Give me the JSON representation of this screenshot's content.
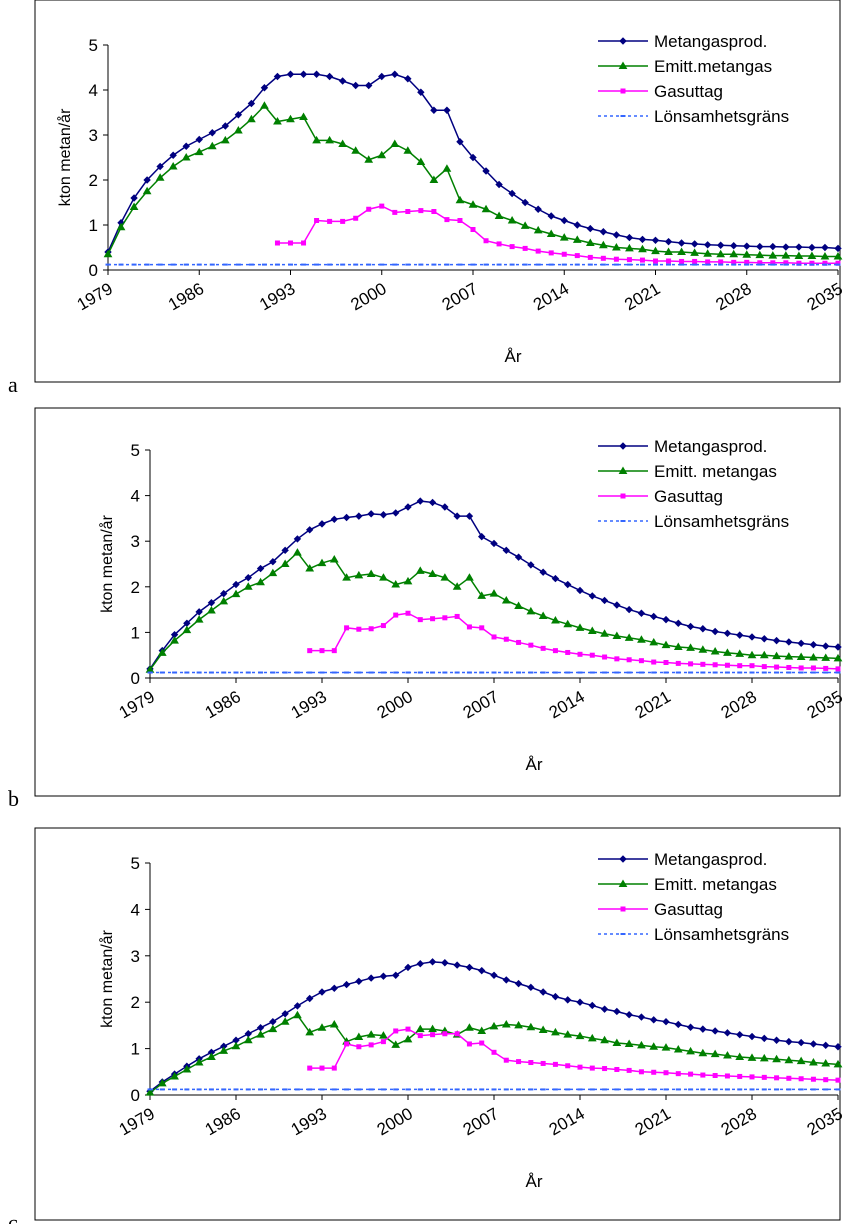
{
  "chart_data": [
    {
      "type": "line",
      "panel_label": "a",
      "x_label": "År",
      "y_label": "kton metan/år",
      "legend": "upper right",
      "x": [
        1979,
        1980,
        1981,
        1982,
        1983,
        1984,
        1985,
        1986,
        1987,
        1988,
        1989,
        1990,
        1991,
        1992,
        1993,
        1994,
        1995,
        1996,
        1997,
        1998,
        1999,
        2000,
        2001,
        2002,
        2003,
        2004,
        2005,
        2006,
        2007,
        2008,
        2009,
        2010,
        2011,
        2012,
        2013,
        2014,
        2015,
        2016,
        2017,
        2018,
        2019,
        2020,
        2021,
        2022,
        2023,
        2024,
        2025,
        2026,
        2027,
        2028,
        2029,
        2030,
        2031,
        2032,
        2033,
        2034,
        2035
      ],
      "xlim": [
        1979,
        2035
      ],
      "xticks": [
        1979,
        1986,
        1993,
        2000,
        2007,
        2014,
        2021,
        2028,
        2035
      ],
      "ylim": [
        0,
        5
      ],
      "yticks": [
        0,
        1,
        2,
        3,
        4,
        5
      ],
      "series": [
        {
          "name": "Metangasprod.",
          "color": "#000080",
          "marker": "diamond",
          "values": [
            0.4,
            1.05,
            1.6,
            2.0,
            2.3,
            2.55,
            2.75,
            2.9,
            3.05,
            3.2,
            3.45,
            3.7,
            4.05,
            4.3,
            4.35,
            4.35,
            4.35,
            4.3,
            4.2,
            4.1,
            4.1,
            4.3,
            4.35,
            4.25,
            3.95,
            3.55,
            3.55,
            2.85,
            2.5,
            2.2,
            1.9,
            1.7,
            1.5,
            1.35,
            1.2,
            1.1,
            1.0,
            0.92,
            0.85,
            0.78,
            0.72,
            0.68,
            0.66,
            0.63,
            0.6,
            0.58,
            0.56,
            0.55,
            0.54,
            0.53,
            0.52,
            0.52,
            0.51,
            0.51,
            0.5,
            0.5,
            0.48
          ]
        },
        {
          "name": "Emitt.metangas",
          "color": "#008000",
          "marker": "triangle",
          "values": [
            0.35,
            0.95,
            1.4,
            1.75,
            2.05,
            2.3,
            2.5,
            2.62,
            2.75,
            2.88,
            3.1,
            3.35,
            3.65,
            3.3,
            3.35,
            3.4,
            2.88,
            2.88,
            2.8,
            2.65,
            2.45,
            2.55,
            2.8,
            2.65,
            2.4,
            2.0,
            2.25,
            1.55,
            1.45,
            1.35,
            1.2,
            1.1,
            0.98,
            0.88,
            0.8,
            0.72,
            0.67,
            0.6,
            0.55,
            0.5,
            0.48,
            0.46,
            0.42,
            0.4,
            0.4,
            0.38,
            0.36,
            0.35,
            0.35,
            0.34,
            0.33,
            0.32,
            0.32,
            0.31,
            0.31,
            0.3,
            0.3
          ]
        },
        {
          "name": "Gasuttag",
          "color": "#ff00ff",
          "marker": "square",
          "values": [
            null,
            null,
            null,
            null,
            null,
            null,
            null,
            null,
            null,
            null,
            null,
            null,
            null,
            0.6,
            0.6,
            0.6,
            1.1,
            1.08,
            1.08,
            1.15,
            1.35,
            1.42,
            1.28,
            1.3,
            1.32,
            1.3,
            1.12,
            1.1,
            0.9,
            0.65,
            0.58,
            0.52,
            0.48,
            0.42,
            0.38,
            0.35,
            0.32,
            0.28,
            0.26,
            0.24,
            0.23,
            0.22,
            0.2,
            0.2,
            0.19,
            0.19,
            0.18,
            0.18,
            0.17,
            0.17,
            0.16,
            0.16,
            0.16,
            0.15,
            0.15,
            0.15,
            0.15
          ]
        },
        {
          "name": "Lönsamhetsgräns",
          "color": "#3366ff",
          "marker": "dash",
          "values": [
            0.12,
            0.12,
            0.12,
            0.12,
            0.12,
            0.12,
            0.12,
            0.12,
            0.12,
            0.12,
            0.12,
            0.12,
            0.12,
            0.12,
            0.12,
            0.12,
            0.12,
            0.12,
            0.12,
            0.12,
            0.12,
            0.12,
            0.12,
            0.12,
            0.12,
            0.12,
            0.12,
            0.12,
            0.12,
            0.12,
            0.12,
            0.12,
            0.12,
            0.12,
            0.12,
            0.12,
            0.12,
            0.12,
            0.12,
            0.12,
            0.12,
            0.12,
            0.12,
            0.12,
            0.12,
            0.12,
            0.12,
            0.12,
            0.12,
            0.12,
            0.12,
            0.12,
            0.12,
            0.12,
            0.12,
            0.12,
            0.12
          ]
        }
      ]
    },
    {
      "type": "line",
      "panel_label": "b",
      "x_label": "År",
      "y_label": "kton metan/år",
      "legend": "upper right",
      "x": [
        1979,
        1980,
        1981,
        1982,
        1983,
        1984,
        1985,
        1986,
        1987,
        1988,
        1989,
        1990,
        1991,
        1992,
        1993,
        1994,
        1995,
        1996,
        1997,
        1998,
        1999,
        2000,
        2001,
        2002,
        2003,
        2004,
        2005,
        2006,
        2007,
        2008,
        2009,
        2010,
        2011,
        2012,
        2013,
        2014,
        2015,
        2016,
        2017,
        2018,
        2019,
        2020,
        2021,
        2022,
        2023,
        2024,
        2025,
        2026,
        2027,
        2028,
        2029,
        2030,
        2031,
        2032,
        2033,
        2034,
        2035
      ],
      "xlim": [
        1979,
        2035
      ],
      "xticks": [
        1979,
        1986,
        1993,
        2000,
        2007,
        2014,
        2021,
        2028,
        2035
      ],
      "ylim": [
        0,
        5
      ],
      "yticks": [
        0,
        1,
        2,
        3,
        4,
        5
      ],
      "series": [
        {
          "name": "Metangasprod.",
          "color": "#000080",
          "marker": "diamond",
          "values": [
            0.2,
            0.6,
            0.95,
            1.2,
            1.45,
            1.65,
            1.85,
            2.05,
            2.2,
            2.4,
            2.55,
            2.8,
            3.05,
            3.25,
            3.38,
            3.48,
            3.52,
            3.55,
            3.6,
            3.58,
            3.62,
            3.75,
            3.88,
            3.85,
            3.75,
            3.55,
            3.55,
            3.1,
            2.95,
            2.8,
            2.65,
            2.48,
            2.32,
            2.18,
            2.05,
            1.92,
            1.8,
            1.7,
            1.6,
            1.5,
            1.42,
            1.35,
            1.28,
            1.2,
            1.13,
            1.08,
            1.02,
            0.98,
            0.94,
            0.9,
            0.86,
            0.82,
            0.79,
            0.76,
            0.73,
            0.7,
            0.68
          ]
        },
        {
          "name": "Emitt. metangas",
          "color": "#008000",
          "marker": "triangle",
          "values": [
            0.18,
            0.55,
            0.82,
            1.05,
            1.28,
            1.48,
            1.68,
            1.84,
            2.0,
            2.1,
            2.3,
            2.5,
            2.75,
            2.4,
            2.52,
            2.6,
            2.2,
            2.25,
            2.28,
            2.2,
            2.05,
            2.12,
            2.35,
            2.28,
            2.2,
            2.0,
            2.2,
            1.8,
            1.85,
            1.7,
            1.58,
            1.46,
            1.36,
            1.26,
            1.18,
            1.1,
            1.03,
            0.97,
            0.92,
            0.88,
            0.84,
            0.78,
            0.72,
            0.68,
            0.66,
            0.62,
            0.58,
            0.55,
            0.53,
            0.5,
            0.5,
            0.48,
            0.47,
            0.46,
            0.45,
            0.44,
            0.43
          ]
        },
        {
          "name": "Gasuttag",
          "color": "#ff00ff",
          "marker": "square",
          "values": [
            null,
            null,
            null,
            null,
            null,
            null,
            null,
            null,
            null,
            null,
            null,
            null,
            null,
            0.6,
            0.6,
            0.6,
            1.1,
            1.07,
            1.08,
            1.15,
            1.38,
            1.42,
            1.28,
            1.3,
            1.32,
            1.35,
            1.12,
            1.1,
            0.9,
            0.85,
            0.78,
            0.72,
            0.65,
            0.6,
            0.56,
            0.52,
            0.5,
            0.46,
            0.42,
            0.4,
            0.38,
            0.35,
            0.34,
            0.32,
            0.31,
            0.3,
            0.29,
            0.28,
            0.27,
            0.27,
            0.25,
            0.24,
            0.23,
            0.22,
            0.22,
            0.21,
            0.2
          ]
        },
        {
          "name": "Lönsamhetsgräns",
          "color": "#3366ff",
          "marker": "dash",
          "values": [
            0.12,
            0.12,
            0.12,
            0.12,
            0.12,
            0.12,
            0.12,
            0.12,
            0.12,
            0.12,
            0.12,
            0.12,
            0.12,
            0.12,
            0.12,
            0.12,
            0.12,
            0.12,
            0.12,
            0.12,
            0.12,
            0.12,
            0.12,
            0.12,
            0.12,
            0.12,
            0.12,
            0.12,
            0.12,
            0.12,
            0.12,
            0.12,
            0.12,
            0.12,
            0.12,
            0.12,
            0.12,
            0.12,
            0.12,
            0.12,
            0.12,
            0.12,
            0.12,
            0.12,
            0.12,
            0.12,
            0.12,
            0.12,
            0.12,
            0.12,
            0.12,
            0.12,
            0.12,
            0.12,
            0.12,
            0.12,
            0.12
          ]
        }
      ]
    },
    {
      "type": "line",
      "panel_label": "c",
      "x_label": "År",
      "y_label": "kton metan/år",
      "legend": "upper right",
      "x": [
        1979,
        1980,
        1981,
        1982,
        1983,
        1984,
        1985,
        1986,
        1987,
        1988,
        1989,
        1990,
        1991,
        1992,
        1993,
        1994,
        1995,
        1996,
        1997,
        1998,
        1999,
        2000,
        2001,
        2002,
        2003,
        2004,
        2005,
        2006,
        2007,
        2008,
        2009,
        2010,
        2011,
        2012,
        2013,
        2014,
        2015,
        2016,
        2017,
        2018,
        2019,
        2020,
        2021,
        2022,
        2023,
        2024,
        2025,
        2026,
        2027,
        2028,
        2029,
        2030,
        2031,
        2032,
        2033,
        2034,
        2035
      ],
      "xlim": [
        1979,
        2035
      ],
      "xticks": [
        1979,
        1986,
        1993,
        2000,
        2007,
        2014,
        2021,
        2028,
        2035
      ],
      "ylim": [
        0,
        5
      ],
      "yticks": [
        0,
        1,
        2,
        3,
        4,
        5
      ],
      "series": [
        {
          "name": "Metangasprod.",
          "color": "#000080",
          "marker": "diamond",
          "values": [
            0.08,
            0.28,
            0.45,
            0.62,
            0.78,
            0.92,
            1.05,
            1.18,
            1.32,
            1.45,
            1.58,
            1.75,
            1.92,
            2.08,
            2.22,
            2.3,
            2.38,
            2.45,
            2.52,
            2.56,
            2.58,
            2.75,
            2.83,
            2.87,
            2.85,
            2.8,
            2.75,
            2.68,
            2.58,
            2.48,
            2.4,
            2.32,
            2.22,
            2.12,
            2.05,
            2.0,
            1.93,
            1.85,
            1.8,
            1.73,
            1.68,
            1.62,
            1.58,
            1.52,
            1.46,
            1.42,
            1.38,
            1.34,
            1.3,
            1.26,
            1.22,
            1.18,
            1.15,
            1.13,
            1.1,
            1.07,
            1.04
          ]
        },
        {
          "name": "Emitt. metangas",
          "color": "#008000",
          "marker": "triangle",
          "values": [
            0.05,
            0.25,
            0.4,
            0.55,
            0.7,
            0.82,
            0.95,
            1.05,
            1.18,
            1.3,
            1.42,
            1.58,
            1.72,
            1.35,
            1.45,
            1.52,
            1.15,
            1.25,
            1.3,
            1.28,
            1.08,
            1.2,
            1.42,
            1.42,
            1.38,
            1.3,
            1.45,
            1.38,
            1.48,
            1.52,
            1.5,
            1.46,
            1.4,
            1.35,
            1.3,
            1.27,
            1.22,
            1.18,
            1.12,
            1.1,
            1.07,
            1.04,
            1.02,
            0.98,
            0.94,
            0.9,
            0.88,
            0.85,
            0.82,
            0.8,
            0.79,
            0.77,
            0.75,
            0.73,
            0.7,
            0.68,
            0.66
          ]
        },
        {
          "name": "Gasuttag",
          "color": "#ff00ff",
          "marker": "square",
          "values": [
            null,
            null,
            null,
            null,
            null,
            null,
            null,
            null,
            null,
            null,
            null,
            null,
            null,
            0.58,
            0.58,
            0.58,
            1.1,
            1.04,
            1.08,
            1.15,
            1.38,
            1.42,
            1.28,
            1.3,
            1.32,
            1.32,
            1.1,
            1.12,
            0.92,
            0.75,
            0.72,
            0.7,
            0.68,
            0.66,
            0.63,
            0.6,
            0.58,
            0.57,
            0.55,
            0.53,
            0.5,
            0.49,
            0.48,
            0.46,
            0.45,
            0.43,
            0.42,
            0.41,
            0.4,
            0.39,
            0.38,
            0.37,
            0.36,
            0.35,
            0.34,
            0.33,
            0.32
          ]
        },
        {
          "name": "Lönsamhetsgräns",
          "color": "#3366ff",
          "marker": "dash",
          "values": [
            0.12,
            0.12,
            0.12,
            0.12,
            0.12,
            0.12,
            0.12,
            0.12,
            0.12,
            0.12,
            0.12,
            0.12,
            0.12,
            0.12,
            0.12,
            0.12,
            0.12,
            0.12,
            0.12,
            0.12,
            0.12,
            0.12,
            0.12,
            0.12,
            0.12,
            0.12,
            0.12,
            0.12,
            0.12,
            0.12,
            0.12,
            0.12,
            0.12,
            0.12,
            0.12,
            0.12,
            0.12,
            0.12,
            0.12,
            0.12,
            0.12,
            0.12,
            0.12,
            0.12,
            0.12,
            0.12,
            0.12,
            0.12,
            0.12,
            0.12,
            0.12,
            0.12,
            0.12,
            0.12,
            0.12,
            0.12,
            0.12
          ]
        }
      ]
    }
  ]
}
